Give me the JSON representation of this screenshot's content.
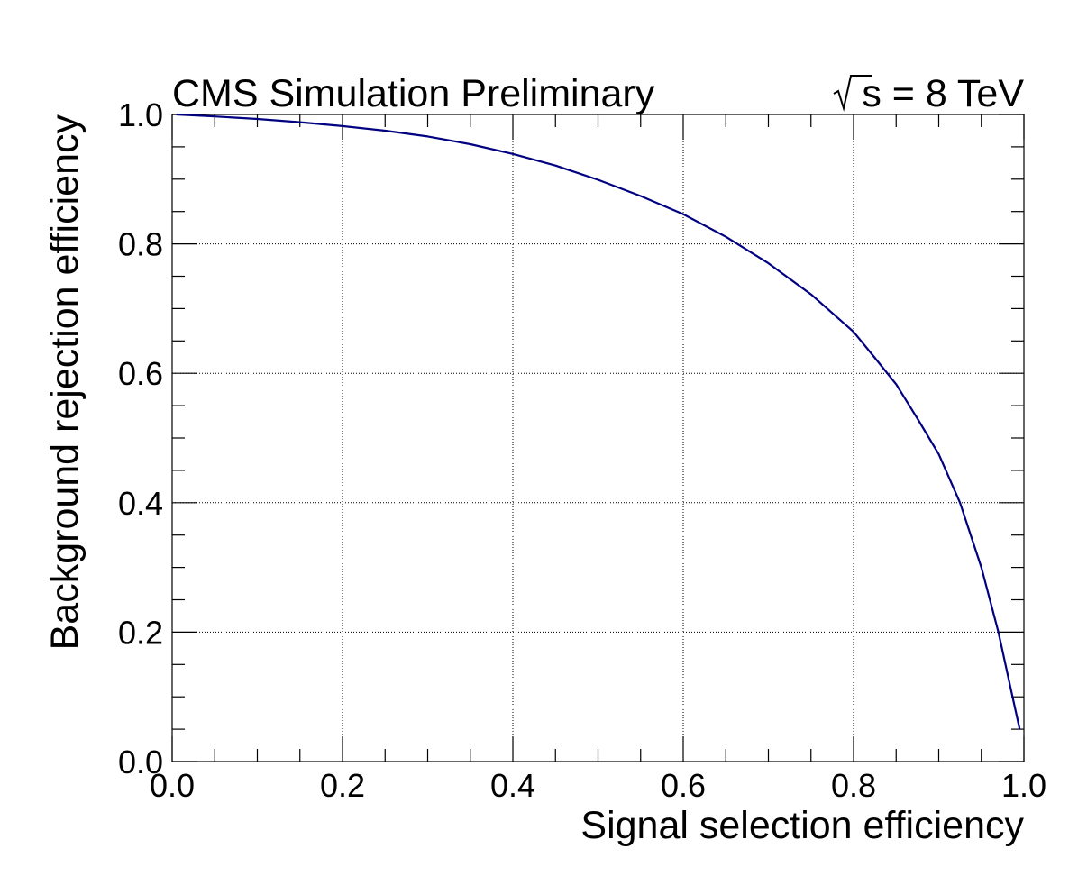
{
  "chart_data": {
    "type": "line",
    "title": "CMS Simulation Preliminary",
    "energy_label": {
      "prefix": "s",
      "text": " = 8 TeV"
    },
    "xlabel": "Signal selection efficiency",
    "ylabel": "Background rejection efficiency",
    "xlim": [
      0,
      1
    ],
    "ylim": [
      0,
      1
    ],
    "xticks": [
      "0.0",
      "0.2",
      "0.4",
      "0.6",
      "0.8",
      "1.0"
    ],
    "yticks": [
      "0.0",
      "0.2",
      "0.4",
      "0.6",
      "0.8",
      "1.0"
    ],
    "grid": true,
    "series": [
      {
        "color": "#000080",
        "x": [
          0.005,
          0.05,
          0.1,
          0.15,
          0.2,
          0.25,
          0.3,
          0.35,
          0.4,
          0.45,
          0.5,
          0.55,
          0.6,
          0.65,
          0.7,
          0.75,
          0.8,
          0.825,
          0.85,
          0.875,
          0.9,
          0.925,
          0.95,
          0.97,
          0.985,
          0.995
        ],
        "y": [
          1.0,
          0.997,
          0.993,
          0.988,
          0.982,
          0.975,
          0.966,
          0.954,
          0.939,
          0.921,
          0.899,
          0.874,
          0.846,
          0.811,
          0.77,
          0.722,
          0.664,
          0.624,
          0.583,
          0.53,
          0.475,
          0.4,
          0.3,
          0.2,
          0.11,
          0.05
        ]
      }
    ]
  }
}
